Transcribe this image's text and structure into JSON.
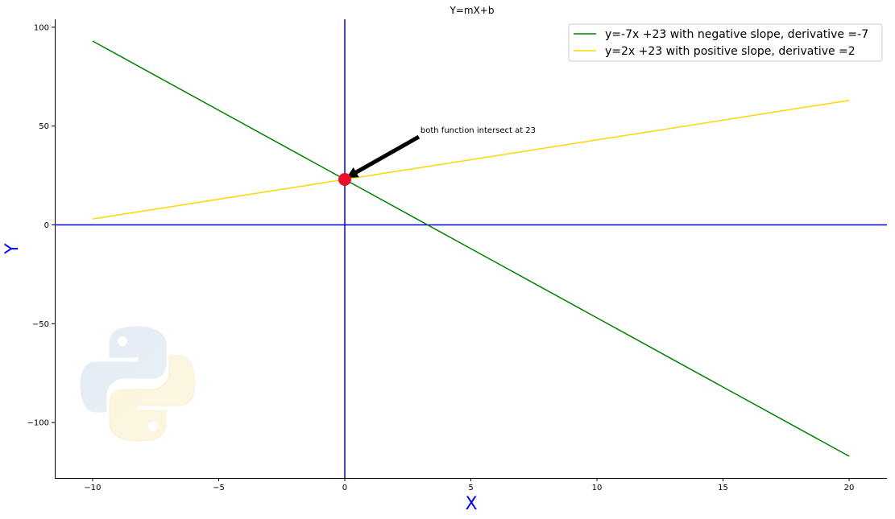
{
  "chart_data": {
    "type": "line",
    "title": "Y=mX+b",
    "xlabel": "X",
    "ylabel": "Y",
    "xlim": [
      -11.5,
      21.5
    ],
    "ylim": [
      -128,
      104
    ],
    "xticks": [
      -10,
      -5,
      0,
      5,
      10,
      15,
      20
    ],
    "yticks": [
      100,
      50,
      0,
      -50,
      -100
    ],
    "grid": false,
    "legend_position": "top-right",
    "series": [
      {
        "name": "y=-7x  +23 with  negative slope, derivative =-7",
        "color": "#008000",
        "x": [
          -10,
          20
        ],
        "y": [
          93,
          -117
        ]
      },
      {
        "name": "y=2x  +23 with   positive slope, derivative =2",
        "color": "#FFD700",
        "x": [
          -10,
          20
        ],
        "y": [
          3,
          63
        ]
      }
    ],
    "axis_lines": {
      "color": "#0000FF",
      "x": 0,
      "y": 0
    },
    "intersection_point": {
      "x": 0,
      "y": 23,
      "color": "#E8102A"
    },
    "annotation": {
      "text": "both function intersect at 23",
      "xy": [
        0,
        23
      ],
      "xytext": [
        3,
        47
      ]
    },
    "label_color": "#0000FF",
    "watermark": "python-logo"
  }
}
